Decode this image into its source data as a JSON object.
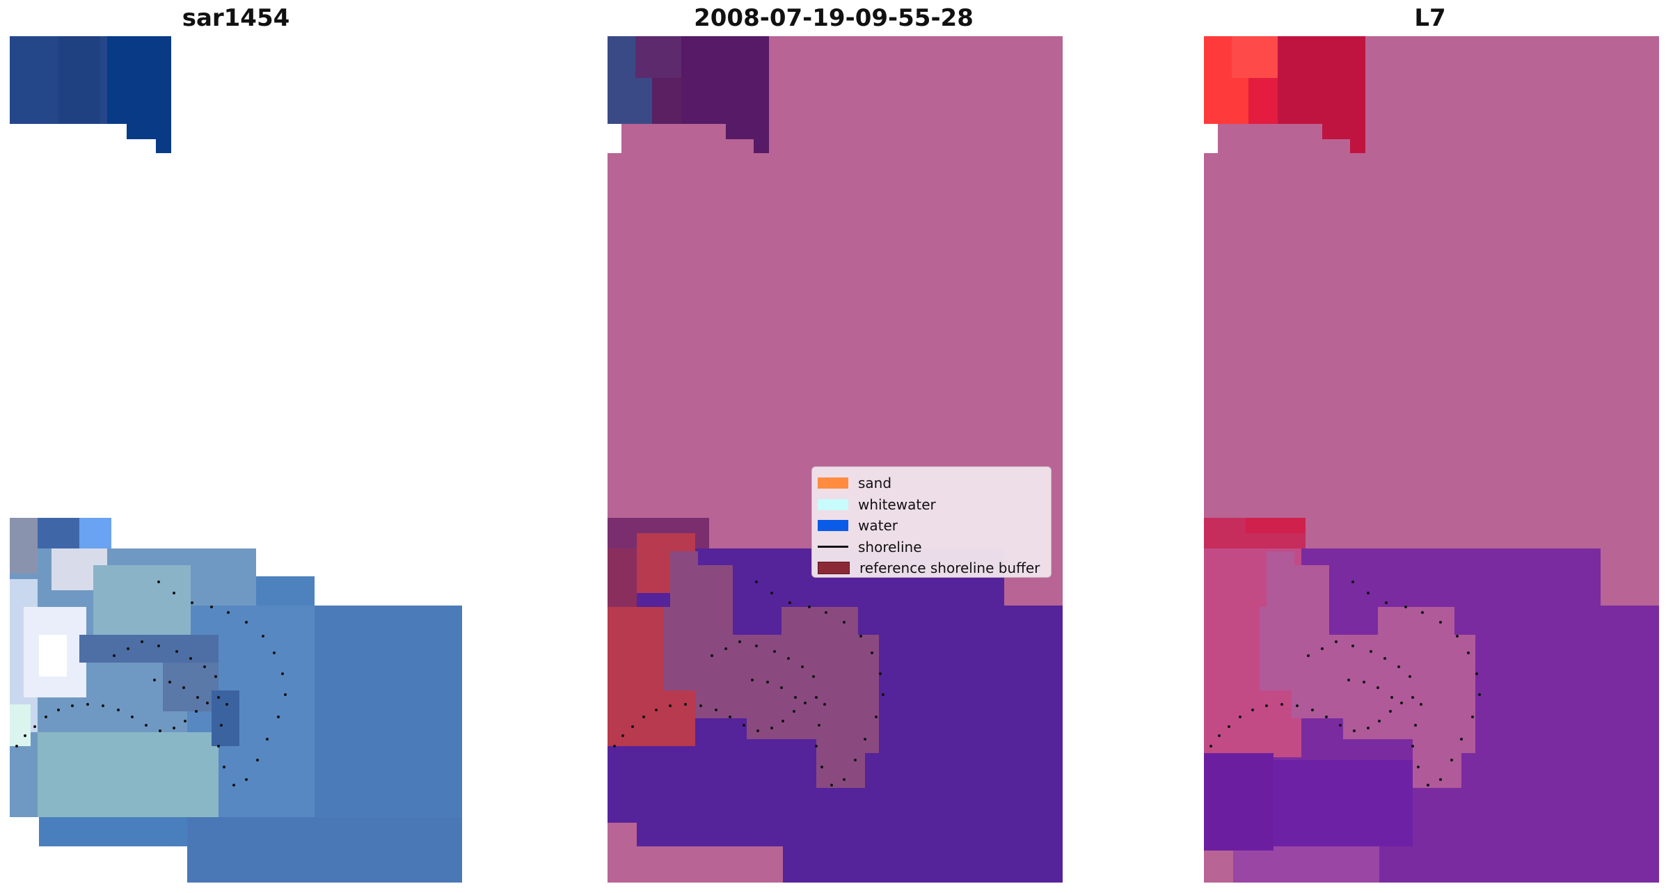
{
  "titles": {
    "left": "sar1454",
    "center": "2008-07-19-09-55-28",
    "right": "L7"
  },
  "legend": {
    "items": [
      {
        "label": "sand",
        "color": "#ff8c40"
      },
      {
        "label": "whitewater",
        "color": "#c8fbfb"
      },
      {
        "label": "water",
        "color": "#0a5ce8"
      },
      {
        "label": "shoreline",
        "color": "#111111"
      },
      {
        "label": "reference shoreline buffer",
        "color": "#8b2a36"
      }
    ]
  },
  "colors": {
    "sar_dark_blue": "#1f4a8c",
    "sar_mid_blue": "#4a7fc0",
    "classified_background": "#b86494",
    "classified_water": "#55239a",
    "classified_buffer": "#8a4a80",
    "classified_sand_patch": "#b83a4e",
    "l7_red": "#ff3a3a",
    "l7_purple": "#7a2ba0"
  }
}
